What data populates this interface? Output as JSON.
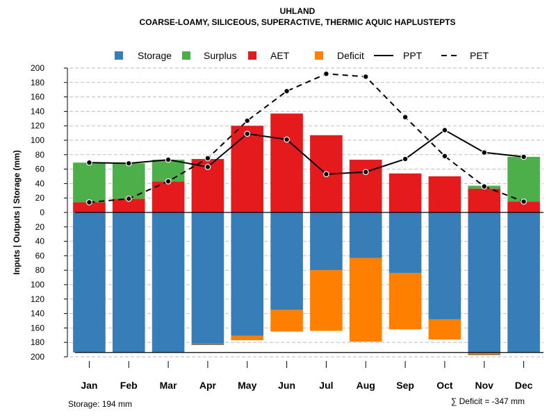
{
  "chart_data": {
    "type": "bar",
    "title": "UHLAND",
    "subtitle": "COARSE-LOAMY, SILICEOUS, SUPERACTIVE, THERMIC AQUIC HAPLUSTEPTS",
    "ylabel": "Inputs | Outputs | Storage     (mm)",
    "xlabel": "",
    "ylim": [
      -200,
      200
    ],
    "yticks": [
      200,
      180,
      160,
      140,
      120,
      100,
      80,
      60,
      40,
      20,
      0,
      20,
      40,
      60,
      80,
      100,
      120,
      140,
      160,
      180,
      200
    ],
    "categories": [
      "Jan",
      "Feb",
      "Mar",
      "Apr",
      "May",
      "Jun",
      "Jul",
      "Aug",
      "Sep",
      "Oct",
      "Nov",
      "Dec"
    ],
    "legend": {
      "position": "top",
      "items": [
        {
          "name": "Storage",
          "kind": "box",
          "color": "#377EB8"
        },
        {
          "name": "Surplus",
          "kind": "box",
          "color": "#4DAF4A"
        },
        {
          "name": "AET",
          "kind": "box",
          "color": "#E41A1C"
        },
        {
          "name": "Deficit",
          "kind": "box",
          "color": "#FF7F00"
        },
        {
          "name": "PPT",
          "kind": "solid-line",
          "color": "#000000"
        },
        {
          "name": "PET",
          "kind": "dashed-line",
          "color": "#000000"
        }
      ]
    },
    "series": [
      {
        "name": "AET",
        "color": "#E41A1C",
        "values": [
          14,
          19,
          43,
          74,
          120,
          137,
          107,
          73,
          54,
          50,
          33,
          15
        ]
      },
      {
        "name": "Surplus",
        "color": "#4DAF4A",
        "values": [
          55,
          49,
          30,
          0,
          0,
          0,
          0,
          0,
          0,
          0,
          4,
          62
        ]
      },
      {
        "name": "Storage",
        "color": "#377EB8",
        "values": [
          194,
          194,
          194,
          182,
          171,
          135,
          80,
          63,
          84,
          148,
          194,
          194
        ]
      },
      {
        "name": "Deficit",
        "color": "#FF7F00",
        "values": [
          0,
          0,
          0,
          1,
          6,
          30,
          84,
          116,
          78,
          28,
          3,
          0
        ]
      },
      {
        "name": "PPT",
        "color": "#000000",
        "values": [
          69,
          68,
          73,
          63,
          109,
          101,
          53,
          56,
          74,
          114,
          83,
          77
        ]
      },
      {
        "name": "PET",
        "color": "#000000",
        "values": [
          14,
          19,
          43,
          75,
          127,
          168,
          192,
          188,
          132,
          78,
          36,
          15
        ]
      }
    ],
    "storage_capacity": 194,
    "footer_left": "Storage: 194 mm",
    "footer_right": "∑ Deficit = -347 mm"
  }
}
